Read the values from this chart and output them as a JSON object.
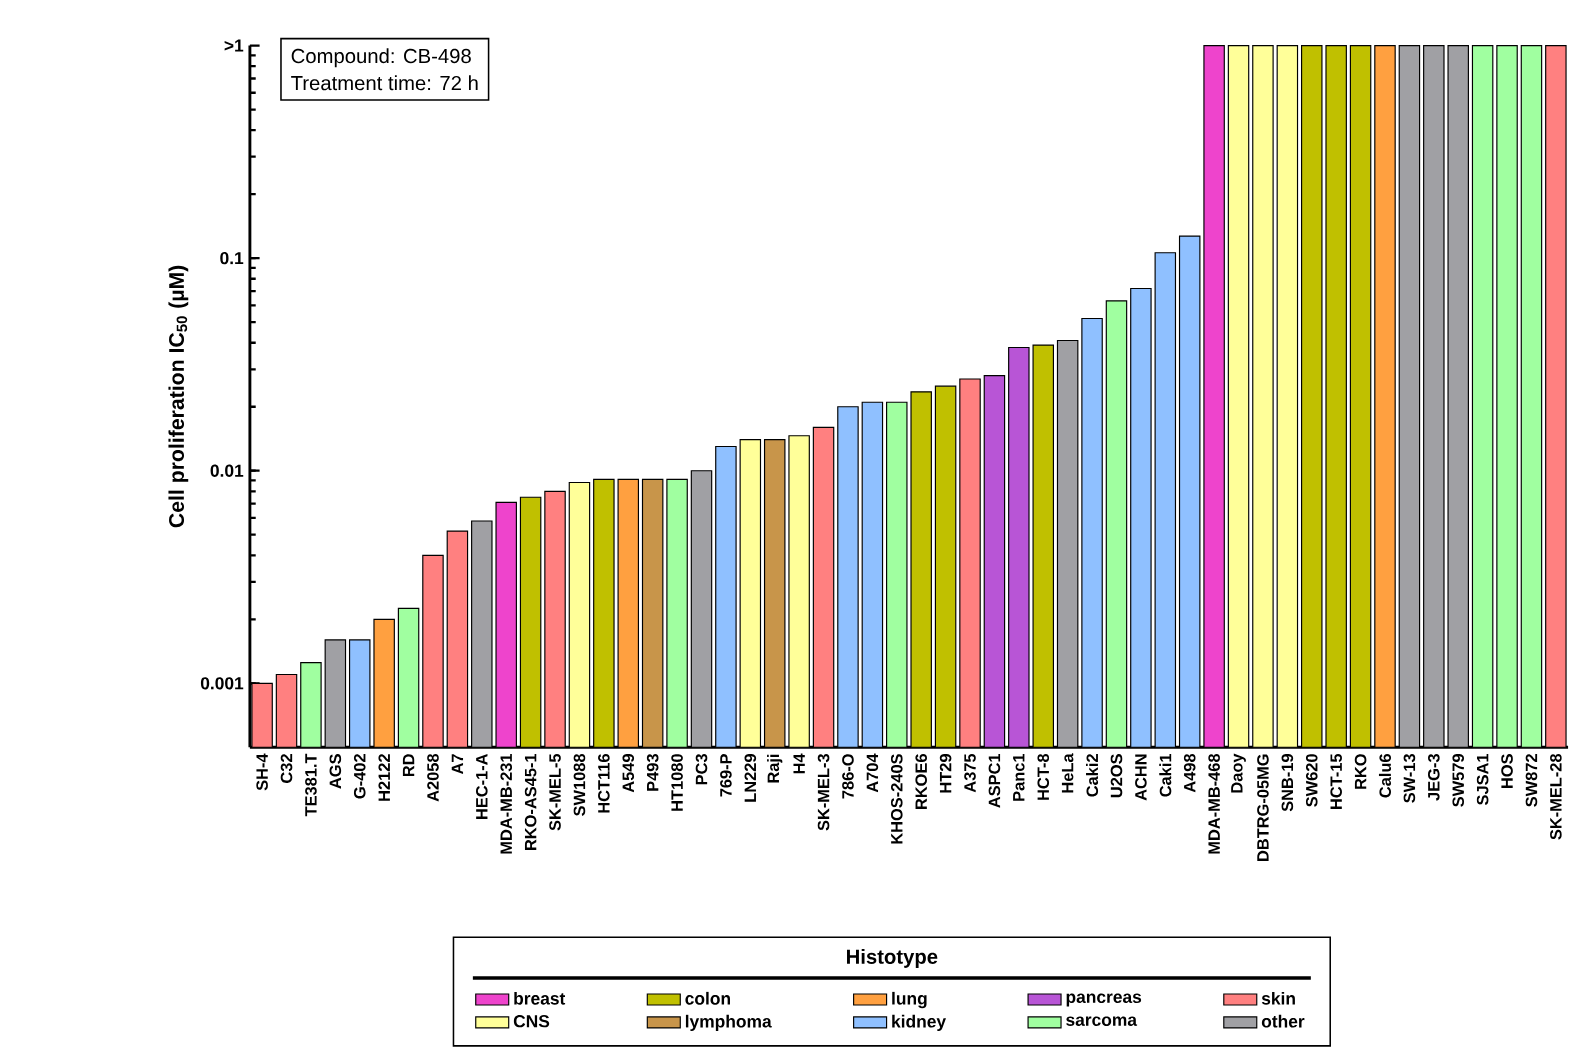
{
  "chart_data": {
    "type": "bar",
    "ylabel": "Cell proliferation IC$_{50}$ (µM)",
    "legend_title": "Histotype",
    "legend": "bottom",
    "log": "y",
    "ylim": [
      0.0005,
      1
    ],
    "yticks": [
      0.001,
      0.01,
      0.1,
      {
        "value": 1,
        "label": ">1"
      }
    ],
    "annotations": [
      "Compound: CB-498",
      "Treatment time: 72 h"
    ],
    "categories": [
      "SH-4",
      "C32",
      "TE381.T",
      "AGS",
      "G-402",
      "H2122",
      "RD",
      "A2058",
      "A7",
      "HEC-1-A",
      "MDA-MB-231",
      "RKO-AS45-1",
      "SK-MEL-5",
      "SW1088",
      "HCT116",
      "A549",
      "P493",
      "HT1080",
      "PC3",
      "769-P",
      "LN229",
      "Raji",
      "H4",
      "SK-MEL-3",
      "786-O",
      "A704",
      "KHOS-240S",
      "RKOE6",
      "HT29",
      "A375",
      "ASPC1",
      "Panc1",
      "HCT-8",
      "HeLa",
      "Caki2",
      "U2OS",
      "ACHN",
      "Caki1",
      "A498",
      "MDA-MB-468",
      "Daoy",
      "DBTRG-05MG",
      "SNB-19",
      "SW620",
      "HCT-15",
      "RKO",
      "Calu6",
      "SW-13",
      "JEG-3",
      "SW579",
      "SJSA1",
      "HOS",
      "SW872",
      "SK-MEL-28"
    ],
    "series": [
      {
        "name": "breast",
        "color": "#ee44cc",
        "values": [
          null,
          null,
          null,
          null,
          null,
          null,
          null,
          null,
          null,
          null,
          0.0071,
          null,
          null,
          null,
          null,
          null,
          null,
          null,
          null,
          null,
          null,
          null,
          null,
          null,
          null,
          null,
          null,
          null,
          null,
          null,
          null,
          null,
          null,
          null,
          null,
          null,
          null,
          null,
          null,
          1,
          null,
          null,
          null,
          null,
          null,
          null,
          null,
          null,
          null,
          null,
          null,
          null,
          null,
          null
        ]
      },
      {
        "name": "colon",
        "color": "#c0c000",
        "values": [
          null,
          null,
          null,
          null,
          null,
          null,
          null,
          null,
          null,
          null,
          null,
          0.0075,
          null,
          null,
          0.0091,
          null,
          null,
          null,
          null,
          null,
          null,
          null,
          null,
          null,
          null,
          null,
          null,
          0.0235,
          0.025,
          null,
          null,
          null,
          0.039,
          null,
          null,
          null,
          null,
          null,
          null,
          null,
          null,
          null,
          null,
          1,
          1,
          1,
          null,
          null,
          null,
          null,
          null,
          null,
          null,
          null
        ]
      },
      {
        "name": "lung",
        "color": "#ffa040",
        "values": [
          null,
          null,
          null,
          null,
          null,
          0.002,
          null,
          null,
          null,
          null,
          null,
          null,
          null,
          null,
          null,
          0.0091,
          null,
          null,
          null,
          null,
          null,
          null,
          null,
          null,
          null,
          null,
          null,
          null,
          null,
          null,
          null,
          null,
          null,
          null,
          null,
          null,
          null,
          null,
          null,
          null,
          null,
          null,
          null,
          null,
          null,
          null,
          1,
          null,
          null,
          null,
          null,
          null,
          null,
          null
        ]
      },
      {
        "name": "pancreas",
        "color": "#b855d6",
        "values": [
          null,
          null,
          null,
          null,
          null,
          null,
          null,
          null,
          null,
          null,
          null,
          null,
          null,
          null,
          null,
          null,
          null,
          null,
          null,
          null,
          null,
          null,
          null,
          null,
          null,
          null,
          null,
          null,
          null,
          null,
          0.028,
          0.038,
          null,
          null,
          null,
          null,
          null,
          null,
          null,
          null,
          null,
          null,
          null,
          null,
          null,
          null,
          null,
          null,
          null,
          null,
          null,
          null,
          null,
          null
        ]
      },
      {
        "name": "skin",
        "color": "#ff8080",
        "values": [
          0.001,
          0.0011,
          null,
          null,
          null,
          null,
          null,
          0.004,
          0.0052,
          null,
          null,
          null,
          0.008,
          null,
          null,
          null,
          null,
          null,
          null,
          null,
          null,
          null,
          null,
          0.016,
          null,
          null,
          null,
          null,
          null,
          0.027,
          null,
          null,
          null,
          null,
          null,
          null,
          null,
          null,
          null,
          null,
          null,
          null,
          null,
          null,
          null,
          null,
          null,
          null,
          null,
          null,
          null,
          null,
          null,
          1
        ]
      },
      {
        "name": "CNS",
        "color": "#ffff99",
        "values": [
          null,
          null,
          null,
          null,
          null,
          null,
          null,
          null,
          null,
          null,
          null,
          null,
          null,
          0.0088,
          null,
          null,
          null,
          null,
          null,
          null,
          0.014,
          null,
          0.0146,
          null,
          null,
          null,
          null,
          null,
          null,
          null,
          null,
          null,
          null,
          null,
          null,
          null,
          null,
          null,
          null,
          null,
          1,
          1,
          1,
          null,
          null,
          null,
          null,
          null,
          null,
          null,
          null,
          null,
          null,
          null
        ]
      },
      {
        "name": "lymphoma",
        "color": "#c8954a",
        "values": [
          null,
          null,
          null,
          null,
          null,
          null,
          null,
          null,
          null,
          null,
          null,
          null,
          null,
          null,
          null,
          null,
          0.0091,
          null,
          null,
          null,
          null,
          0.014,
          null,
          null,
          null,
          null,
          null,
          null,
          null,
          null,
          null,
          null,
          null,
          null,
          null,
          null,
          null,
          null,
          null,
          null,
          null,
          null,
          null,
          null,
          null,
          null,
          null,
          null,
          null,
          null,
          null,
          null,
          null,
          null
        ]
      },
      {
        "name": "kidney",
        "color": "#8fc0ff",
        "values": [
          null,
          null,
          null,
          null,
          0.0016,
          null,
          null,
          null,
          null,
          null,
          null,
          null,
          null,
          null,
          null,
          null,
          null,
          null,
          null,
          0.013,
          null,
          null,
          null,
          null,
          0.02,
          0.021,
          null,
          null,
          null,
          null,
          null,
          null,
          null,
          null,
          0.052,
          null,
          0.072,
          0.106,
          0.127,
          null,
          null,
          null,
          null,
          null,
          null,
          null,
          null,
          null,
          null,
          null,
          null,
          null,
          null,
          null
        ]
      },
      {
        "name": "sarcoma",
        "color": "#a0ffa0",
        "values": [
          null,
          null,
          0.00125,
          null,
          null,
          null,
          0.00225,
          null,
          null,
          null,
          null,
          null,
          null,
          null,
          null,
          null,
          null,
          0.0091,
          null,
          null,
          null,
          null,
          null,
          null,
          null,
          null,
          0.021,
          null,
          null,
          null,
          null,
          null,
          null,
          null,
          null,
          0.063,
          null,
          null,
          null,
          null,
          null,
          null,
          null,
          null,
          null,
          null,
          null,
          null,
          null,
          null,
          1,
          1,
          1,
          null
        ]
      },
      {
        "name": "other",
        "color": "#a0a0a4",
        "values": [
          null,
          null,
          null,
          0.0016,
          null,
          null,
          null,
          null,
          null,
          0.0058,
          null,
          null,
          null,
          null,
          null,
          null,
          null,
          null,
          0.01,
          null,
          null,
          null,
          null,
          null,
          null,
          null,
          null,
          null,
          null,
          null,
          null,
          null,
          null,
          0.041,
          null,
          null,
          null,
          null,
          null,
          null,
          null,
          null,
          null,
          null,
          null,
          null,
          null,
          1,
          1,
          1,
          null,
          null,
          null,
          null
        ]
      }
    ]
  }
}
